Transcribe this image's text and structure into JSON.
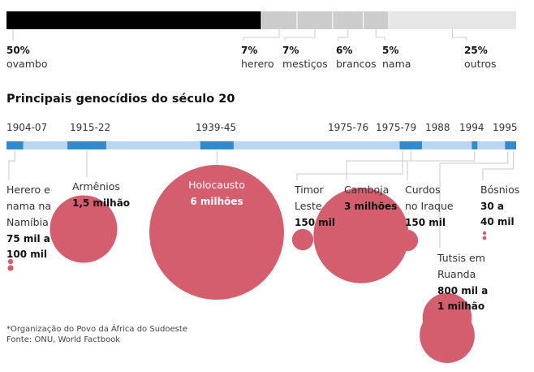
{
  "chart_data": [
    {
      "type": "bar",
      "subtype": "stacked-100",
      "title": "",
      "categories": [
        "ovambo",
        "herero",
        "mestiços",
        "brancos",
        "nama",
        "outros"
      ],
      "values": [
        50,
        7,
        7,
        6,
        5,
        25
      ],
      "value_labels": [
        "50%",
        "7%",
        "7%",
        "6%",
        "5%",
        "25%"
      ],
      "colors": [
        "#000000",
        "#cccccc",
        "#cccccc",
        "#cccccc",
        "#cccccc",
        "#e6e6e6"
      ]
    },
    {
      "type": "scatter",
      "subtype": "timeline-bubble",
      "title": "Principais genocídios do século 20",
      "xlim": [
        1904,
        1996
      ],
      "timeline_color": "#b9d5ef",
      "period_color": "#3289cb",
      "bubble_color": "#d45e6e",
      "events": [
        {
          "years": "1904-07",
          "start": 1904,
          "end": 1907,
          "name": [
            "Herero e",
            "nama na",
            "Namíbia"
          ],
          "deaths_label": [
            "75 mil a",
            "100 mil"
          ],
          "deaths_min": 75000,
          "deaths_max": 100000
        },
        {
          "years": "1915-22",
          "start": 1915,
          "end": 1922,
          "name": [
            "Armênios"
          ],
          "deaths_label": [
            "1,5 milhão"
          ],
          "deaths_min": 1500000,
          "deaths_max": 1500000
        },
        {
          "years": "1939-45",
          "start": 1939,
          "end": 1945,
          "name": [
            "Holocausto"
          ],
          "deaths_label": [
            "6 milhões"
          ],
          "deaths_min": 6000000,
          "deaths_max": 6000000
        },
        {
          "years": "1975-76",
          "start": 1975,
          "end": 1976,
          "name": [
            "Timor",
            "Leste"
          ],
          "deaths_label": [
            "150 mil"
          ],
          "deaths_min": 150000,
          "deaths_max": 150000
        },
        {
          "years": "1975-79",
          "start": 1975,
          "end": 1979,
          "name": [
            "Camboja"
          ],
          "deaths_label": [
            "3 milhões"
          ],
          "deaths_min": 3000000,
          "deaths_max": 3000000
        },
        {
          "years": "1988",
          "start": 1988,
          "end": 1988,
          "name": [
            "Curdos",
            "no Iraque"
          ],
          "deaths_label": [
            "150 mil"
          ],
          "deaths_min": 150000,
          "deaths_max": 150000
        },
        {
          "years": "1994",
          "start": 1994,
          "end": 1994,
          "name": [
            "Tutsis em",
            "Ruanda"
          ],
          "deaths_label": [
            "800 mil a",
            "1 milhão"
          ],
          "deaths_min": 800000,
          "deaths_max": 1000000
        },
        {
          "years": "1995",
          "start": 1995,
          "end": 1995,
          "name": [
            "Bósnios"
          ],
          "deaths_label": [
            "30 a",
            "40 mil"
          ],
          "deaths_min": 30000,
          "deaths_max": 40000
        }
      ]
    }
  ],
  "footnote": "*Organização do Povo da África do Sudoeste",
  "source": "Fonte: ONU, World Factbook"
}
